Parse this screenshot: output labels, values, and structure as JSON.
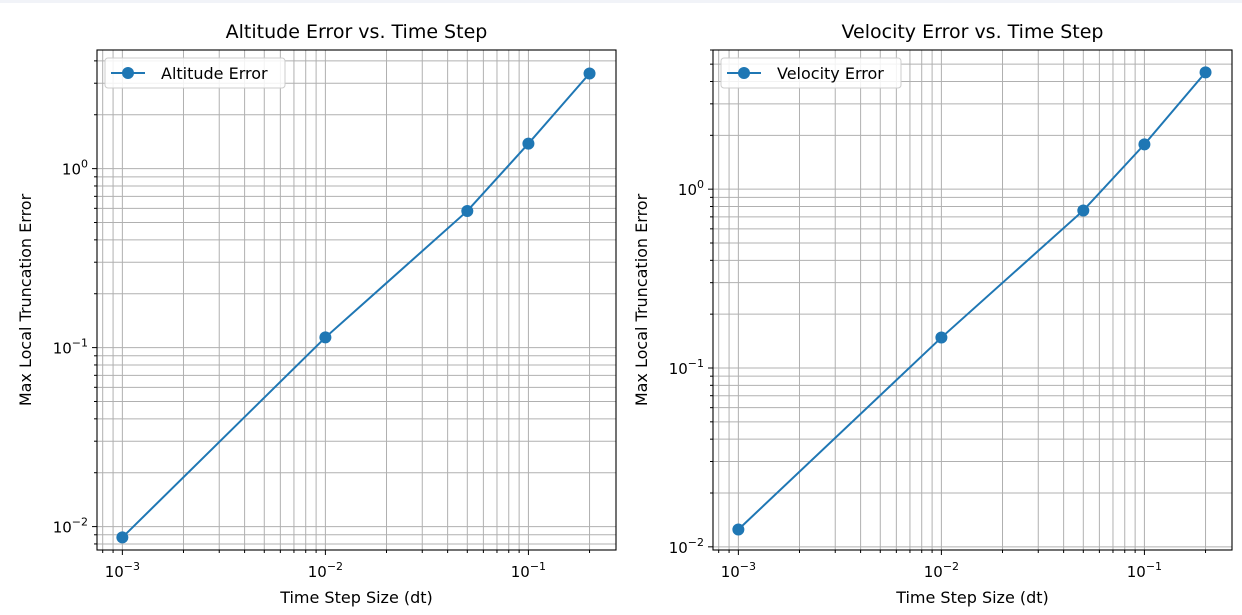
{
  "chart_data": [
    {
      "type": "line",
      "title": "Altitude Error vs. Time Step",
      "xlabel": "Time Step Size (dt)",
      "ylabel": "Max Local Truncation Error",
      "xscale": "log",
      "yscale": "log",
      "xlim": [
        0.00075,
        0.27
      ],
      "ylim": [
        0.0074,
        4.6
      ],
      "x_ticks": [
        0.001,
        0.01,
        0.1
      ],
      "x_tick_labels": [
        {
          "base": "10",
          "exp": "−3"
        },
        {
          "base": "10",
          "exp": "−2"
        },
        {
          "base": "10",
          "exp": "−1"
        }
      ],
      "y_ticks": [
        0.01,
        0.1,
        1
      ],
      "y_tick_labels": [
        {
          "base": "10",
          "exp": "−2"
        },
        {
          "base": "10",
          "exp": "−1"
        },
        {
          "base": "10",
          "exp": "0"
        }
      ],
      "grid": "both (major and minor)",
      "legend_position": "upper-left",
      "series": [
        {
          "name": "Altitude Error",
          "color": "#1f77b4",
          "marker": "circle",
          "x": [
            0.001,
            0.01,
            0.05,
            0.1,
            0.2
          ],
          "y": [
            0.0087,
            0.114,
            0.58,
            1.38,
            3.4
          ]
        }
      ]
    },
    {
      "type": "line",
      "title": "Velocity Error vs. Time Step",
      "xlabel": "Time Step Size (dt)",
      "ylabel": "Max Local Truncation Error",
      "xscale": "log",
      "yscale": "log",
      "xlim": [
        0.00075,
        0.27
      ],
      "ylim": [
        0.0096,
        6.0
      ],
      "x_ticks": [
        0.001,
        0.01,
        0.1
      ],
      "x_tick_labels": [
        {
          "base": "10",
          "exp": "−3"
        },
        {
          "base": "10",
          "exp": "−2"
        },
        {
          "base": "10",
          "exp": "−1"
        }
      ],
      "y_ticks": [
        0.01,
        0.1,
        1
      ],
      "y_tick_labels": [
        {
          "base": "10",
          "exp": "−2"
        },
        {
          "base": "10",
          "exp": "−1"
        },
        {
          "base": "10",
          "exp": "0"
        }
      ],
      "grid": "both (major and minor)",
      "legend_position": "upper-left",
      "series": [
        {
          "name": "Velocity Error",
          "color": "#1f77b4",
          "marker": "circle",
          "x": [
            0.001,
            0.01,
            0.05,
            0.1,
            0.2
          ],
          "y": [
            0.0125,
            0.148,
            0.76,
            1.78,
            4.5
          ]
        }
      ]
    }
  ]
}
